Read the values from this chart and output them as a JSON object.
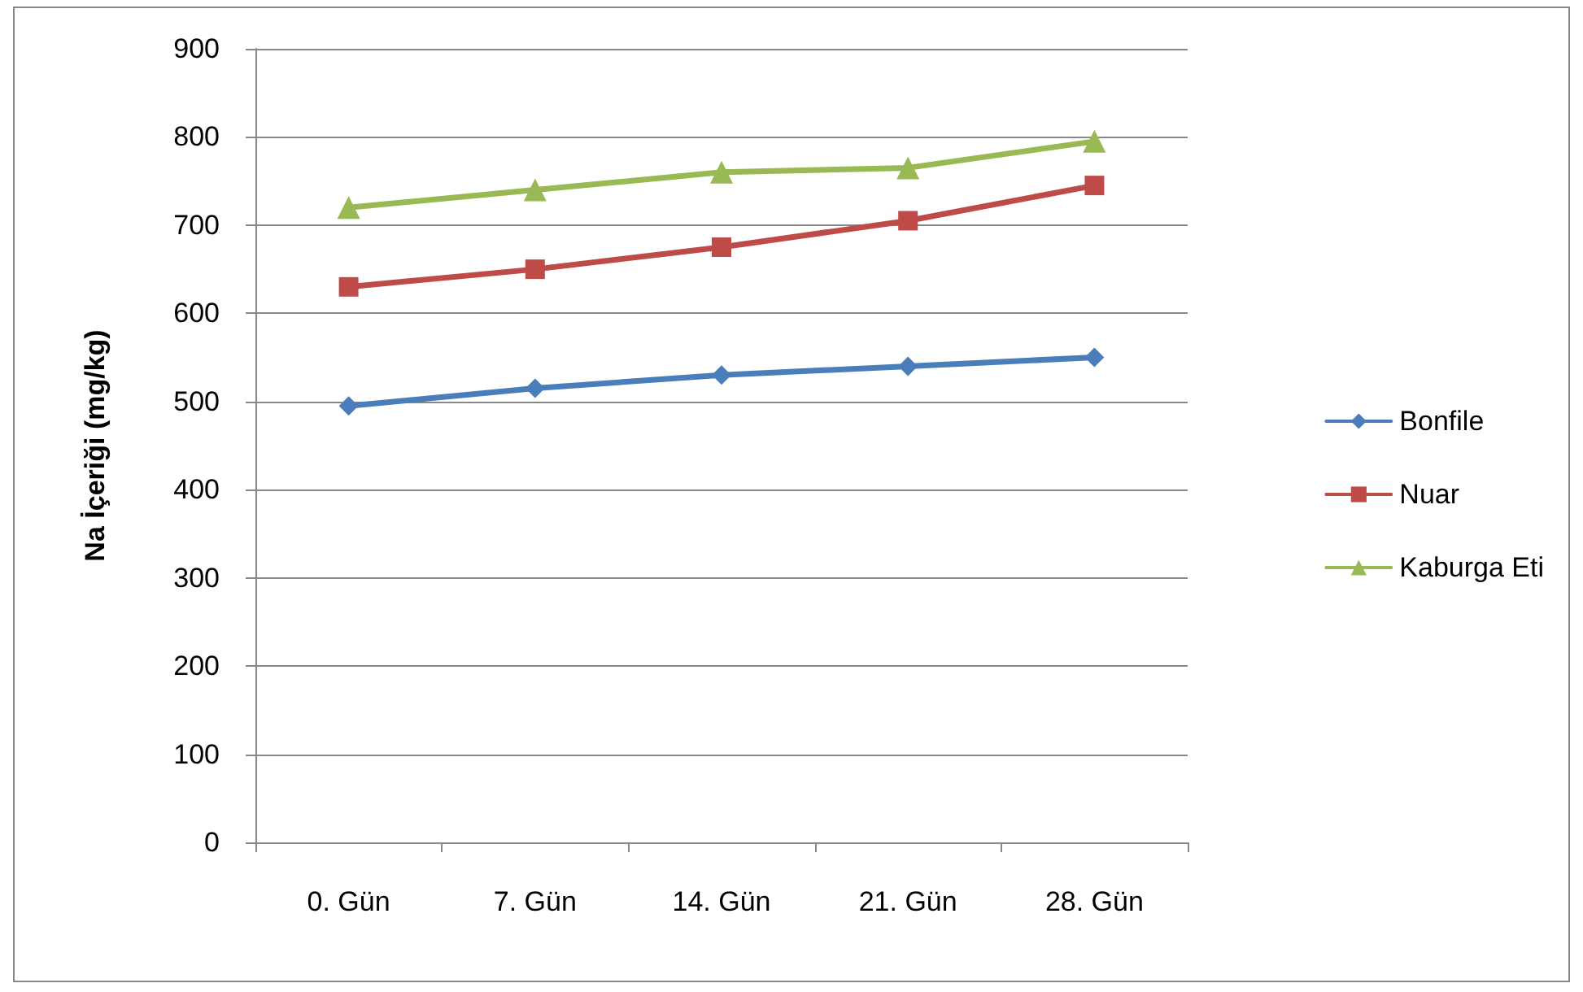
{
  "chart_data": {
    "type": "line",
    "ylabel": "Na İçeriği (mg/kg)",
    "categories": [
      "0. Gün",
      "7. Gün",
      "14. Gün",
      "21. Gün",
      "28. Gün"
    ],
    "series": [
      {
        "name": "Bonfile",
        "color": "#4a7ebb",
        "marker": "diamond",
        "values": [
          495,
          515,
          530,
          540,
          550
        ]
      },
      {
        "name": "Nuar",
        "color": "#be4b48",
        "marker": "square",
        "values": [
          630,
          650,
          675,
          705,
          745
        ]
      },
      {
        "name": "Kaburga Eti",
        "color": "#98b954",
        "marker": "triangle",
        "values": [
          720,
          740,
          760,
          765,
          795
        ]
      }
    ],
    "ylim": [
      0,
      900
    ],
    "yticks": [
      0,
      100,
      200,
      300,
      400,
      500,
      600,
      700,
      800,
      900
    ],
    "grid": "y",
    "legend": "right",
    "line_style": "solid"
  }
}
